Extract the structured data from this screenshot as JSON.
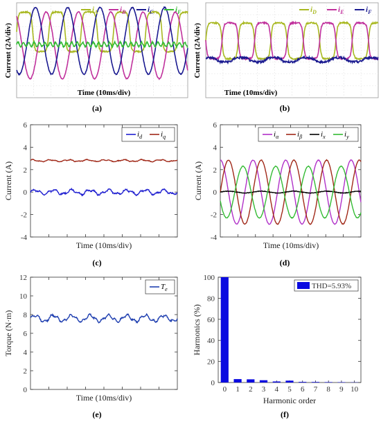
{
  "chart_data": [
    {
      "id": "a",
      "type": "line",
      "panel_label": "(a)",
      "xlabel": "Time (10ms/div)",
      "ylabel": "Current (2A/div)",
      "grid": true,
      "legend": "top-right",
      "series": [
        {
          "name": "A",
          "color": "#a8b820",
          "amplitude": 1.1,
          "offset": 0.6,
          "phase_deg": 0,
          "style": "square"
        },
        {
          "name": "B",
          "color": "#c0309c",
          "amplitude": 1.85,
          "offset": -0.15,
          "phase_deg": 120,
          "style": "sine"
        },
        {
          "name": "C",
          "color": "#1a1a90",
          "amplitude": 1.85,
          "offset": 0.1,
          "phase_deg": 240,
          "style": "sine"
        },
        {
          "name": "F",
          "color": "#33bb33",
          "amplitude": 0.12,
          "offset": -0.1,
          "phase_deg": 0,
          "style": "ripple"
        }
      ],
      "cycles": 5.3
    },
    {
      "id": "b",
      "type": "line",
      "panel_label": "(b)",
      "xlabel": "Time (10ms/div)",
      "ylabel": "Current (2A/div)",
      "grid": true,
      "legend": "top-right",
      "series": [
        {
          "name": "D",
          "color": "#a8b820",
          "amplitude": 1.0,
          "offset": 0.1,
          "phase_deg": 0,
          "style": "square"
        },
        {
          "name": "E",
          "color": "#c0309c",
          "amplitude": 1.0,
          "offset": 0.1,
          "phase_deg": 180,
          "style": "square"
        },
        {
          "name": "F",
          "color": "#1a1a90",
          "amplitude": 0.4,
          "offset": -0.95,
          "phase_deg": 60,
          "style": "flat"
        }
      ],
      "cycles": 5.3
    },
    {
      "id": "c",
      "type": "line",
      "panel_label": "(c)",
      "xlabel": "Time (10ms/div)",
      "ylabel": "Current (A)",
      "ylim": [
        -4,
        6
      ],
      "yticks": [
        -4,
        -2,
        0,
        2,
        4,
        6
      ],
      "legend": "top-right",
      "series": [
        {
          "name": "d",
          "color": "#1f1fd0",
          "level": 0.0,
          "ripple": 0.3
        },
        {
          "name": "q",
          "color": "#a02818",
          "level": 2.8,
          "ripple": 0.12
        }
      ]
    },
    {
      "id": "d",
      "type": "line",
      "panel_label": "(d)",
      "xlabel": "Time  (10ms/div)",
      "ylabel": "Current (A)",
      "ylim": [
        -4,
        6
      ],
      "yticks": [
        -4,
        -2,
        0,
        2,
        4,
        6
      ],
      "legend": "top-right",
      "series": [
        {
          "name": "α",
          "color": "#b030c8",
          "amplitude": 2.85,
          "phase_deg": 90
        },
        {
          "name": "β",
          "color": "#a02818",
          "amplitude": 2.85,
          "phase_deg": 0
        },
        {
          "name": "x",
          "color": "#000000",
          "amplitude": 0.08,
          "phase_deg": 0
        },
        {
          "name": "y",
          "color": "#33bb33",
          "amplitude": 2.3,
          "phase_deg": 200
        }
      ],
      "cycles": 4.3
    },
    {
      "id": "e",
      "type": "line",
      "panel_label": "(e)",
      "xlabel": "Time (10ms/div)",
      "ylabel": "Torque (N·m)",
      "ylim": [
        0,
        12
      ],
      "yticks": [
        0,
        2,
        4,
        6,
        8,
        10,
        12
      ],
      "legend": "top-right",
      "series": [
        {
          "name": "e",
          "color": "#1f3fb0",
          "level": 7.6,
          "ripple": 0.45
        }
      ]
    },
    {
      "id": "f",
      "type": "bar",
      "panel_label": "(f)",
      "xlabel": "Harmonic order",
      "ylabel": "Harmonics (%)",
      "ylim": [
        0,
        100
      ],
      "yticks": [
        0,
        20,
        40,
        60,
        80,
        100
      ],
      "categories": [
        "0",
        "1",
        "2",
        "3",
        "4",
        "5",
        "6",
        "7",
        "8",
        "9",
        "10"
      ],
      "values": [
        100,
        3.2,
        3.0,
        2.2,
        1.0,
        1.8,
        0.6,
        0.5,
        0.4,
        0.3,
        0.2
      ],
      "bar_color": "#0a0ae0",
      "legend_text": "THD=5.93%"
    }
  ],
  "legend_prefix": "i",
  "legend_prefix_e": "T"
}
